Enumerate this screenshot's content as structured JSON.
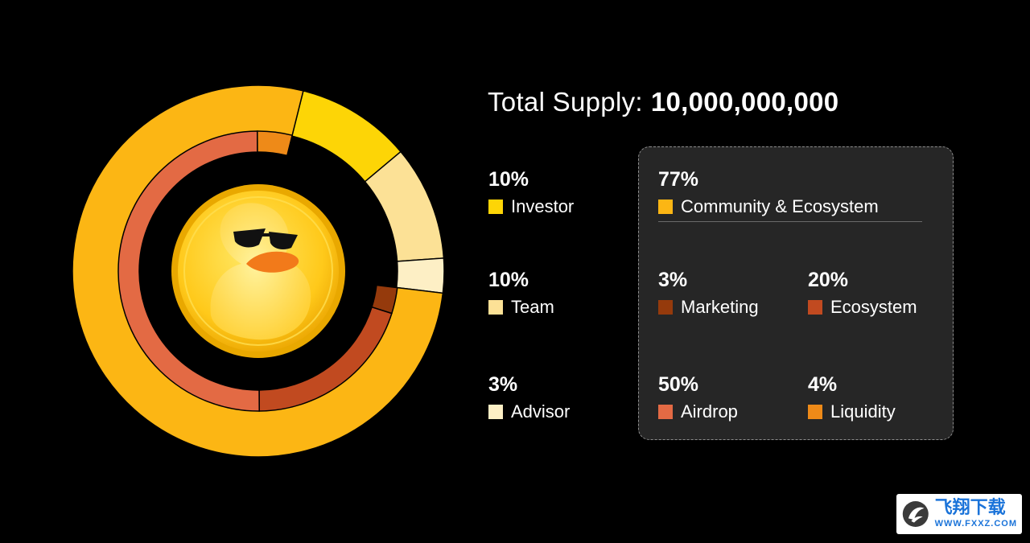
{
  "title": {
    "label": "Total Supply:",
    "value": "10,000,000,000"
  },
  "chart_data": {
    "type": "pie",
    "outer_ring": [
      {
        "name": "Community & Ecosystem",
        "pct": "77%",
        "value": 77,
        "color": "#FCB614"
      },
      {
        "name": "Investor",
        "pct": "10%",
        "value": 10,
        "color": "#FDD506"
      },
      {
        "name": "Team",
        "pct": "10%",
        "value": 10,
        "color": "#FCE196"
      },
      {
        "name": "Advisor",
        "pct": "3%",
        "value": 3,
        "color": "#FDEFC5"
      }
    ],
    "inner_ring": [
      {
        "name": "Marketing",
        "pct": "3%",
        "value": 3,
        "color": "#953A0C"
      },
      {
        "name": "Ecosystem",
        "pct": "20%",
        "value": 20,
        "color": "#C14A20"
      },
      {
        "name": "Airdrop",
        "pct": "50%",
        "value": 50,
        "color": "#E36A44"
      },
      {
        "name": "Liquidity",
        "pct": "4%",
        "value": 4,
        "color": "#EE8A18"
      }
    ]
  },
  "coin": {
    "icon": "duck-coin-icon",
    "colors": {
      "rim": "#F2B705",
      "face": "#FFD733",
      "duck": "#FFE45C",
      "beak": "#F27A1A"
    }
  },
  "watermark": {
    "icon": "fxxz-logo-icon",
    "cn": "飞翔下载",
    "en": "WWW.FXXZ.COM"
  }
}
